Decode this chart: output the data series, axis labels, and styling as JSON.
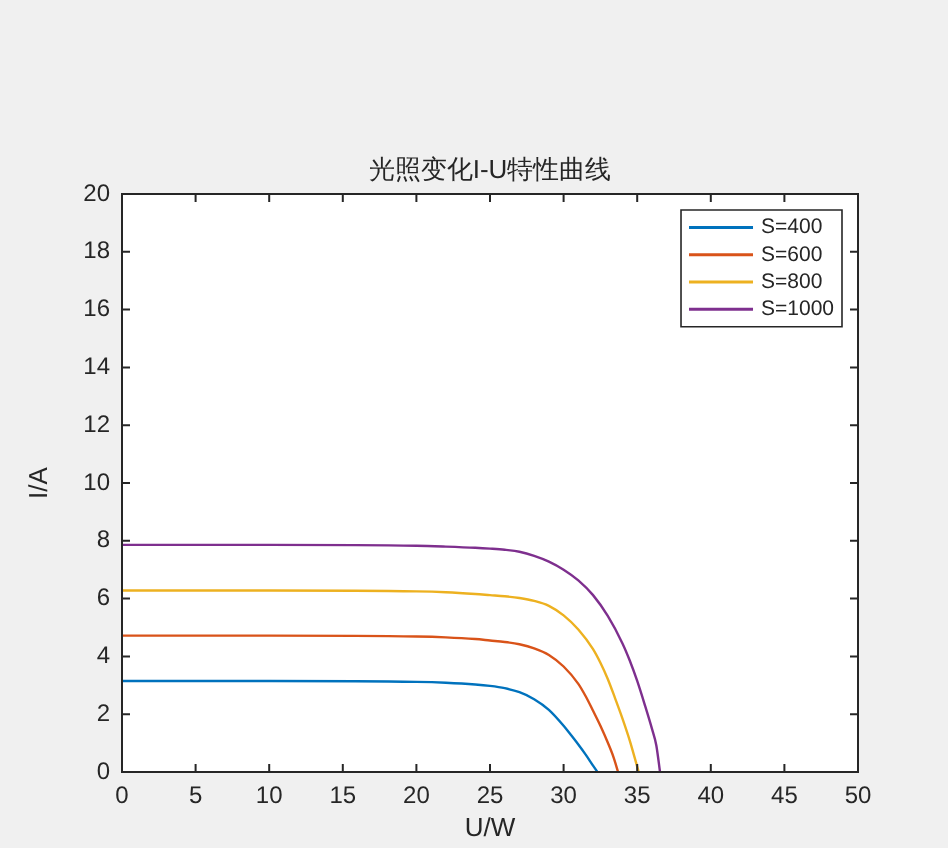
{
  "chart_data": {
    "type": "line",
    "title": "光照变化I-U特性曲线",
    "xlabel": "U/W",
    "ylabel": "I/A",
    "xlim": [
      0,
      50
    ],
    "xticks": [
      0,
      5,
      10,
      15,
      20,
      25,
      30,
      35,
      40,
      45,
      50
    ],
    "ylim": [
      0,
      20
    ],
    "yticks": [
      0,
      2,
      4,
      6,
      8,
      10,
      12,
      14,
      16,
      18,
      20
    ],
    "grid": false,
    "legend": "top right",
    "line_style": "solid",
    "series": [
      {
        "name": "S=400",
        "color": "#0072bd",
        "x": [
          0,
          10,
          20,
          22,
          24,
          25,
          26,
          27,
          28,
          29,
          30,
          30.5,
          31,
          31.5,
          32,
          32.3
        ],
        "values": [
          3.15,
          3.15,
          3.12,
          3.09,
          3.03,
          2.98,
          2.9,
          2.76,
          2.52,
          2.15,
          1.6,
          1.28,
          0.95,
          0.6,
          0.22,
          0
        ]
      },
      {
        "name": "S=600",
        "color": "#d95319",
        "x": [
          0,
          10,
          20,
          22,
          24,
          25,
          26,
          27,
          28,
          29,
          30,
          31,
          31.5,
          32,
          32.5,
          33,
          33.4,
          33.7
        ],
        "values": [
          4.72,
          4.72,
          4.69,
          4.66,
          4.6,
          4.55,
          4.5,
          4.42,
          4.28,
          4.05,
          3.65,
          3.05,
          2.62,
          2.12,
          1.6,
          1.02,
          0.5,
          0
        ]
      },
      {
        "name": "S=800",
        "color": "#edb120",
        "x": [
          0,
          10,
          20,
          22,
          24,
          25,
          26,
          27,
          28,
          29,
          30,
          31,
          32,
          32.5,
          33,
          33.5,
          34,
          34.5,
          35.1
        ],
        "values": [
          6.28,
          6.28,
          6.25,
          6.22,
          6.16,
          6.12,
          6.08,
          6.02,
          5.92,
          5.75,
          5.42,
          4.93,
          4.25,
          3.78,
          3.22,
          2.55,
          1.85,
          1.08,
          0
        ]
      },
      {
        "name": "S=1000",
        "color": "#7e2f8e",
        "x": [
          0,
          10,
          20,
          22,
          24,
          25,
          26,
          27,
          28,
          29,
          30,
          31,
          32,
          33,
          34,
          34.5,
          35,
          35.5,
          36,
          36.3,
          36.55
        ],
        "values": [
          7.86,
          7.86,
          7.83,
          7.8,
          7.76,
          7.73,
          7.69,
          7.62,
          7.48,
          7.28,
          7.0,
          6.63,
          6.12,
          5.4,
          4.45,
          3.85,
          3.15,
          2.35,
          1.5,
          0.92,
          0
        ]
      }
    ]
  }
}
